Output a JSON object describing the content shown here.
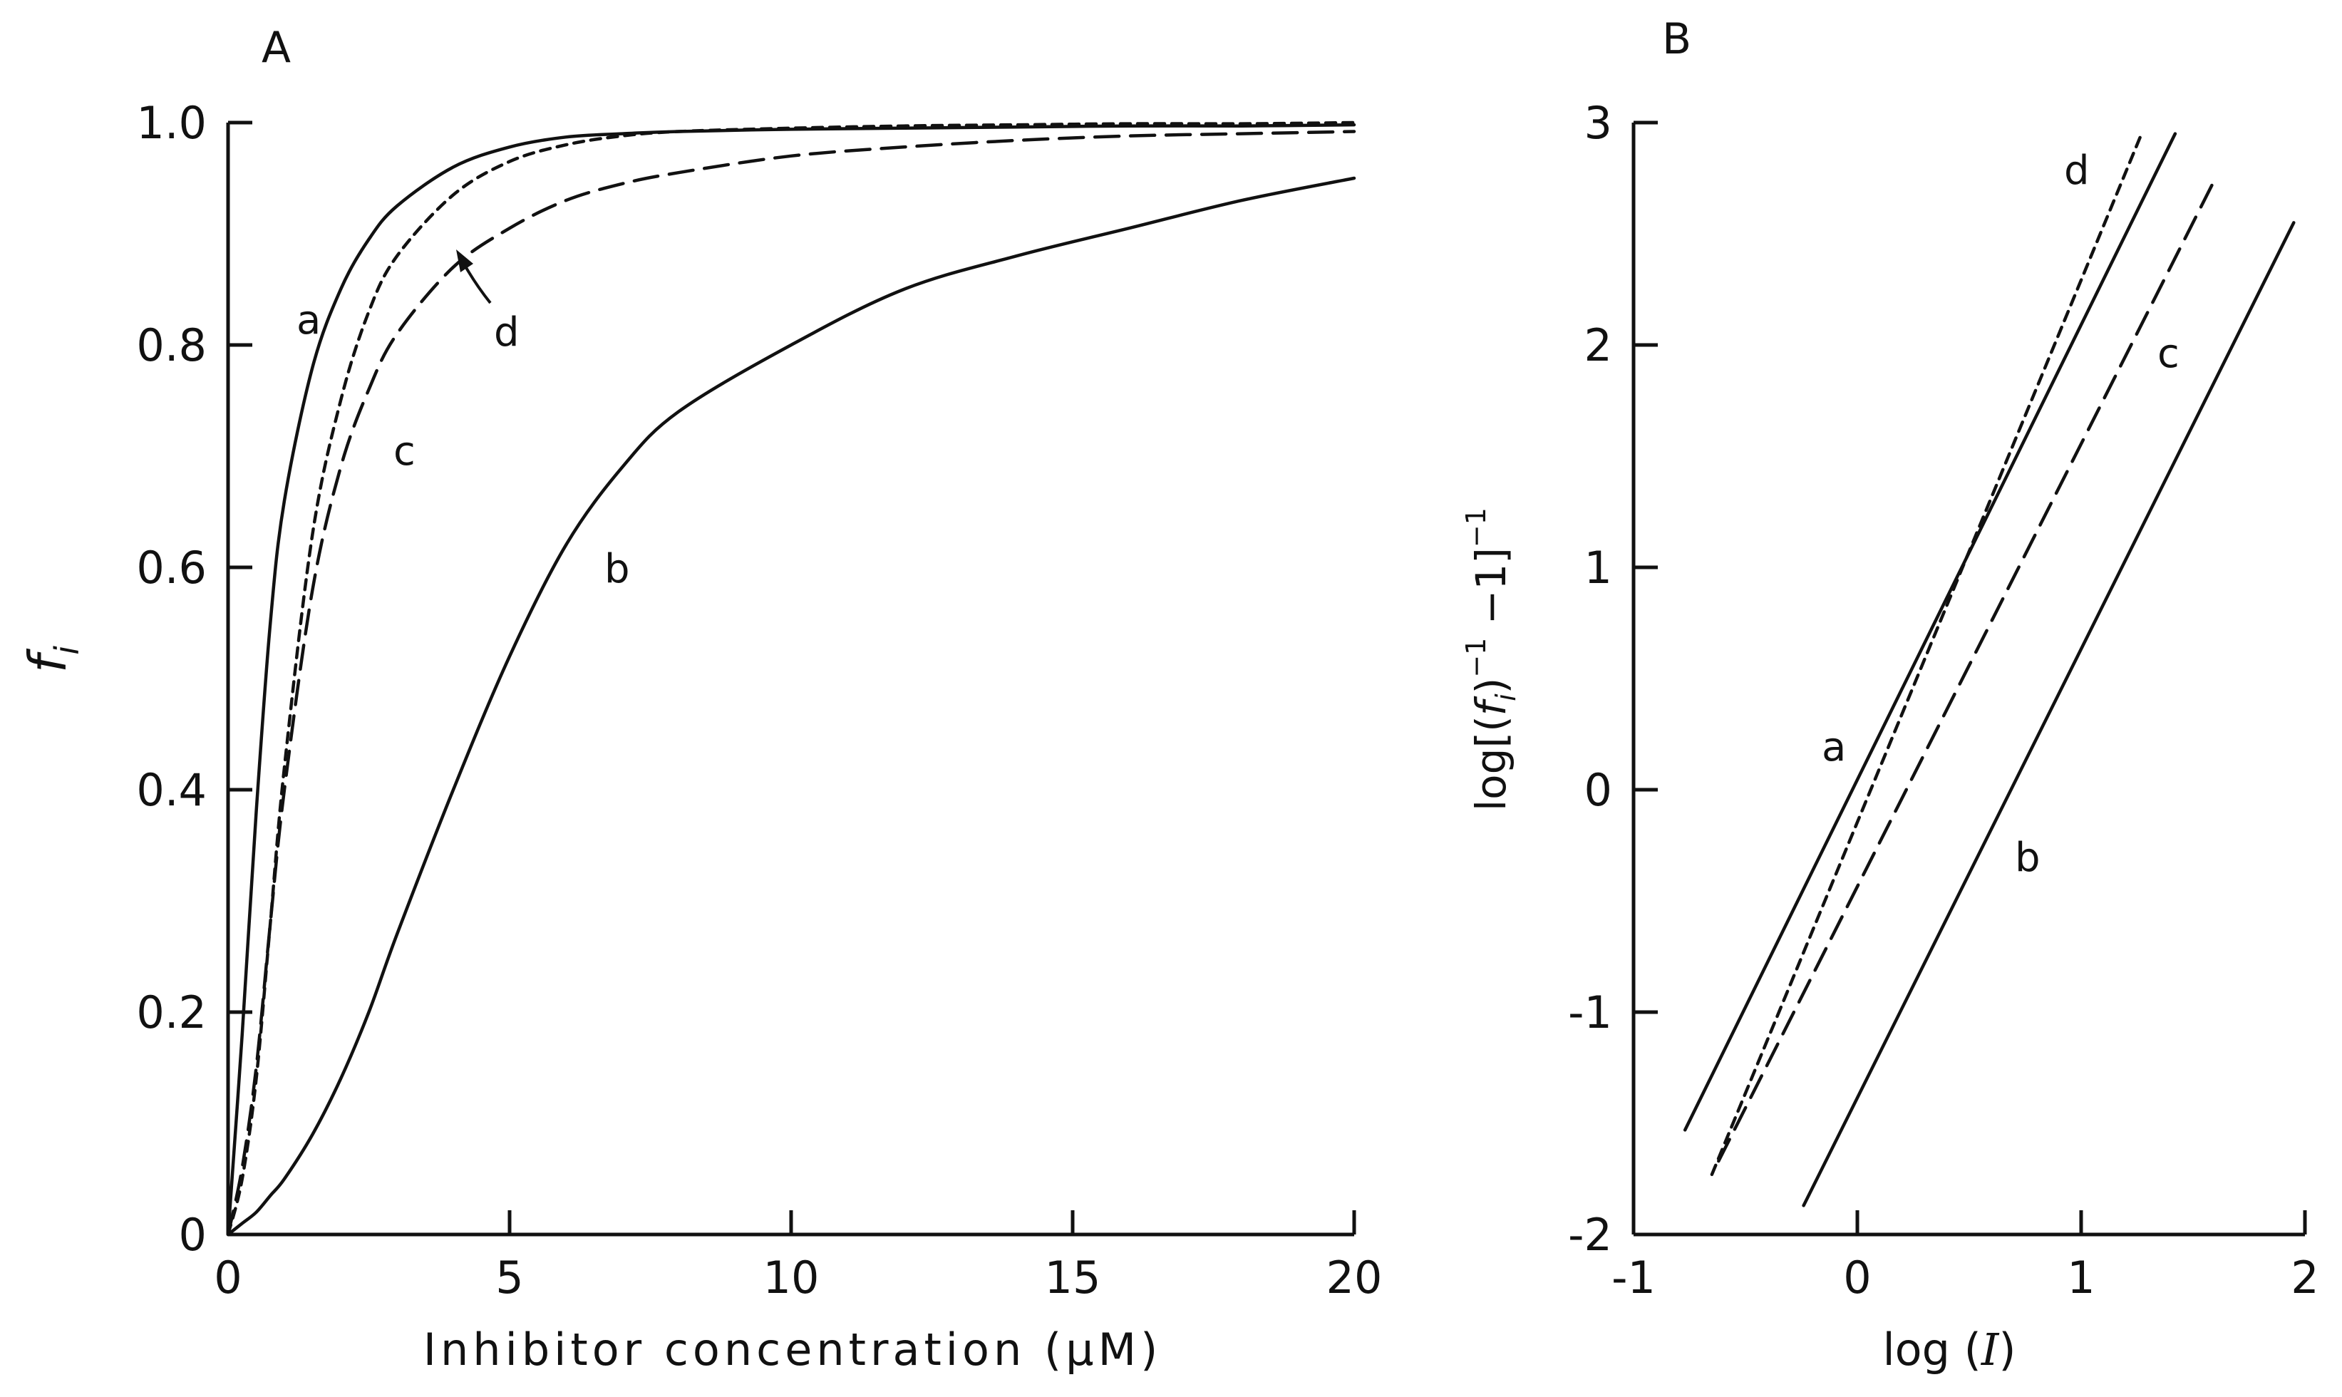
{
  "chart_data": [
    {
      "panel": "A",
      "type": "line",
      "xlabel": "Inhibitor concentration (μM)",
      "ylabel": "f_i",
      "xlim": [
        0,
        20
      ],
      "ylim": [
        0,
        1.0
      ],
      "x_ticks": [
        "0",
        "5",
        "10",
        "15",
        "20"
      ],
      "y_ticks": [
        "0",
        "0.2",
        "0.4",
        "0.6",
        "0.8",
        "1.0"
      ],
      "x_tick_values": [
        0,
        5,
        10,
        15,
        20
      ],
      "y_tick_values": [
        0,
        0.2,
        0.4,
        0.6,
        0.8,
        1.0
      ],
      "grid": false,
      "x": [
        0,
        0.25,
        0.5,
        0.75,
        1,
        1.5,
        2,
        2.5,
        3,
        4,
        5,
        6,
        7,
        8,
        10,
        12,
        14,
        16,
        18,
        20
      ],
      "series": [
        {
          "name": "a",
          "style": "solid",
          "values": [
            0,
            0.18,
            0.38,
            0.55,
            0.66,
            0.78,
            0.85,
            0.895,
            0.925,
            0.96,
            0.978,
            0.987,
            0.99,
            0.992,
            0.994,
            0.995,
            0.996,
            0.997,
            0.997,
            0.998
          ]
        },
        {
          "name": "b",
          "style": "solid",
          "values": [
            0,
            0.01,
            0.02,
            0.035,
            0.05,
            0.09,
            0.14,
            0.2,
            0.27,
            0.4,
            0.52,
            0.62,
            0.69,
            0.74,
            0.8,
            0.85,
            0.88,
            0.905,
            0.93,
            0.95
          ]
        },
        {
          "name": "c",
          "style": "long-dash",
          "values": [
            0,
            0.06,
            0.15,
            0.28,
            0.4,
            0.58,
            0.69,
            0.76,
            0.81,
            0.87,
            0.905,
            0.93,
            0.945,
            0.955,
            0.97,
            0.978,
            0.984,
            0.988,
            0.99,
            0.992
          ]
        },
        {
          "name": "d",
          "style": "short-dash",
          "values": [
            0,
            0.05,
            0.14,
            0.28,
            0.42,
            0.63,
            0.75,
            0.83,
            0.88,
            0.935,
            0.965,
            0.98,
            0.988,
            0.992,
            0.995,
            0.997,
            0.998,
            0.999,
            0.999,
            1.0
          ]
        }
      ],
      "labels": {
        "a": "a",
        "b": "b",
        "c": "c",
        "d": "d"
      }
    },
    {
      "panel": "B",
      "type": "line",
      "xlabel": "log (I)",
      "ylabel": "log[(f_i)^-1 -1]^-1",
      "xlim": [
        -1,
        2
      ],
      "ylim": [
        -2,
        3
      ],
      "x_ticks": [
        "-1",
        "0",
        "1",
        "2"
      ],
      "y_ticks": [
        "-2",
        "-1",
        "0",
        "1",
        "2",
        "3"
      ],
      "x_tick_values": [
        -1,
        0,
        1,
        2
      ],
      "y_tick_values": [
        -2,
        -1,
        0,
        1,
        2,
        3
      ],
      "grid": false,
      "series": [
        {
          "name": "a",
          "style": "solid",
          "x": [
            -0.77,
            1.42
          ],
          "values": [
            -1.53,
            2.95
          ]
        },
        {
          "name": "b",
          "style": "solid",
          "x": [
            -0.24,
            1.95
          ],
          "values": [
            -1.87,
            2.55
          ]
        },
        {
          "name": "c",
          "style": "long-dash",
          "x": [
            -0.62,
            1.59
          ],
          "values": [
            -1.67,
            2.73
          ]
        },
        {
          "name": "d",
          "style": "short-dash",
          "x": [
            -0.65,
            1.27
          ],
          "values": [
            -1.73,
            2.95
          ]
        }
      ],
      "labels": {
        "a": "a",
        "b": "b",
        "c": "c",
        "d": "d"
      }
    }
  ]
}
